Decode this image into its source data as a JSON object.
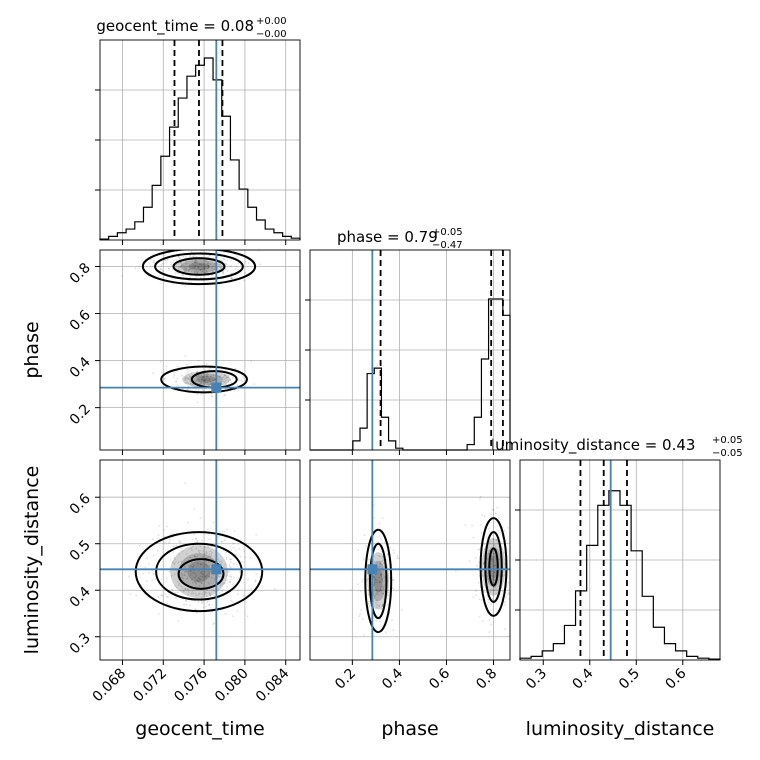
{
  "chart_data": {
    "type": "scatter",
    "parameters": [
      "geocent_time",
      "phase",
      "luminosity_distance"
    ],
    "truths": {
      "geocent_time": 0.0772,
      "phase": 0.285,
      "luminosity_distance": 0.445
    },
    "titles": [
      {
        "param": "geocent_time",
        "text": "geocent_time = 0.08",
        "plus": "+0.00",
        "minus": "−0.00"
      },
      {
        "param": "phase",
        "text": "phase = 0.79",
        "plus": "+0.05",
        "minus": "−0.47"
      },
      {
        "param": "luminosity_distance",
        "text": "luminosity_distance = 0.43",
        "plus": "+0.05",
        "minus": "−0.05"
      }
    ],
    "quantiles": {
      "geocent_time": [
        0.0731,
        0.0755,
        0.0778
      ],
      "phase": [
        0.32,
        0.79,
        0.84
      ],
      "luminosity_distance": [
        0.38,
        0.43,
        0.48
      ]
    },
    "ticks": {
      "geocent_time": [
        "0.068",
        "0.072",
        "0.076",
        "0.080",
        "0.084"
      ],
      "phase_x": [
        "0.2",
        "0.4",
        "0.6",
        "0.8"
      ],
      "phase_y": [
        "0.2",
        "0.4",
        "0.6",
        "0.8"
      ],
      "luminosity_distance_x": [
        "0.3",
        "0.4",
        "0.5",
        "0.6"
      ],
      "luminosity_distance_y": [
        "0.3",
        "0.4",
        "0.5",
        "0.6"
      ]
    },
    "histograms": {
      "geocent_time": {
        "range": [
          0.0658,
          0.0854
        ],
        "counts": [
          0.005,
          0.02,
          0.04,
          0.06,
          0.1,
          0.18,
          0.3,
          0.46,
          0.62,
          0.78,
          0.9,
          0.96,
          1.0,
          0.88,
          0.68,
          0.44,
          0.28,
          0.18,
          0.11,
          0.06,
          0.04,
          0.02,
          0.01
        ]
      },
      "phase": {
        "range": [
          0.02,
          0.87
        ],
        "counts": [
          0,
          0,
          0,
          0,
          0,
          0,
          0.05,
          0.12,
          0.42,
          0.45,
          0.18,
          0.05,
          0.01,
          0,
          0,
          0,
          0,
          0,
          0,
          0,
          0,
          0,
          0.03,
          0.18,
          0.5,
          0.83,
          0.83,
          0.74
        ]
      },
      "luminosity_distance": {
        "range": [
          0.25,
          0.68
        ],
        "counts": [
          0.01,
          0.02,
          0.05,
          0.09,
          0.19,
          0.38,
          0.63,
          0.85,
          0.93,
          0.85,
          0.6,
          0.35,
          0.18,
          0.09,
          0.05,
          0.02,
          0.01,
          0.005
        ]
      }
    },
    "contours": {
      "phase_vs_geocent_time": [
        {
          "cx": 0.0755,
          "cy": 0.8,
          "rx": 0.0055,
          "ry": 0.075
        },
        {
          "cx": 0.0755,
          "cy": 0.8,
          "rx": 0.0043,
          "ry": 0.055
        },
        {
          "cx": 0.0755,
          "cy": 0.8,
          "rx": 0.0025,
          "ry": 0.035
        },
        {
          "cx": 0.076,
          "cy": 0.32,
          "rx": 0.0042,
          "ry": 0.055
        },
        {
          "cx": 0.077,
          "cy": 0.32,
          "rx": 0.0022,
          "ry": 0.035
        }
      ],
      "luminosity_distance_vs_geocent_time": [
        {
          "cx": 0.0755,
          "cy": 0.44,
          "rx": 0.0062,
          "ry": 0.085
        },
        {
          "cx": 0.0755,
          "cy": 0.44,
          "rx": 0.0042,
          "ry": 0.06
        },
        {
          "cx": 0.0757,
          "cy": 0.435,
          "rx": 0.0022,
          "ry": 0.032
        }
      ],
      "luminosity_distance_vs_phase": [
        {
          "cx": 0.31,
          "cy": 0.42,
          "rx": 0.055,
          "ry": 0.11
        },
        {
          "cx": 0.31,
          "cy": 0.42,
          "rx": 0.035,
          "ry": 0.08
        },
        {
          "cx": 0.8,
          "cy": 0.45,
          "rx": 0.055,
          "ry": 0.105
        },
        {
          "cx": 0.8,
          "cy": 0.45,
          "rx": 0.035,
          "ry": 0.075
        },
        {
          "cx": 0.8,
          "cy": 0.45,
          "rx": 0.018,
          "ry": 0.04
        }
      ]
    },
    "grid": true,
    "truth_color": "#4682b4",
    "line_color": "#000000",
    "grid_color": "#b0b0b0"
  }
}
